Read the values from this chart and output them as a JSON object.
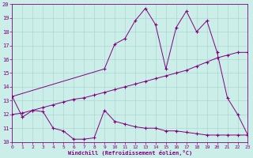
{
  "line1_x": [
    0,
    1,
    2,
    3,
    4,
    5,
    6,
    7,
    8,
    9,
    10,
    11,
    12,
    13,
    14,
    15,
    16,
    17,
    18,
    19,
    20,
    21,
    22,
    23
  ],
  "line1_y": [
    13.3,
    11.8,
    12.3,
    12.2,
    11.0,
    10.8,
    10.2,
    10.2,
    10.3,
    12.3,
    11.5,
    11.3,
    11.1,
    11.0,
    11.0,
    10.8,
    10.8,
    10.7,
    10.6,
    10.5,
    10.5,
    10.5,
    10.5,
    10.5
  ],
  "line2_x": [
    0,
    9,
    10,
    11,
    12,
    13,
    14,
    15,
    16,
    17,
    18,
    19,
    20,
    21,
    22,
    23
  ],
  "line2_y": [
    13.3,
    15.3,
    17.1,
    17.5,
    18.8,
    19.7,
    18.5,
    15.3,
    18.3,
    19.5,
    18.0,
    18.8,
    16.5,
    13.2,
    12.0,
    10.5
  ],
  "line3_x": [
    0,
    1,
    2,
    3,
    4,
    5,
    6,
    7,
    8,
    9,
    10,
    11,
    12,
    13,
    14,
    15,
    16,
    17,
    18,
    19,
    20,
    21,
    22,
    23
  ],
  "line3_y": [
    12.0,
    12.1,
    12.3,
    12.5,
    12.7,
    12.9,
    13.1,
    13.2,
    13.4,
    13.6,
    13.8,
    14.0,
    14.2,
    14.4,
    14.6,
    14.8,
    15.0,
    15.2,
    15.5,
    15.8,
    16.1,
    16.3,
    16.5,
    16.5
  ],
  "color": "#800080",
  "bg_color": "#cceee8",
  "grid_color": "#aad8d0",
  "xlabel": "Windchill (Refroidissement éolien,°C)",
  "xlim": [
    0,
    23
  ],
  "ylim": [
    10,
    20
  ],
  "yticks": [
    10,
    11,
    12,
    13,
    14,
    15,
    16,
    17,
    18,
    19,
    20
  ],
  "xticks": [
    0,
    1,
    2,
    3,
    4,
    5,
    6,
    7,
    8,
    9,
    10,
    11,
    12,
    13,
    14,
    15,
    16,
    17,
    18,
    19,
    20,
    21,
    22,
    23
  ]
}
